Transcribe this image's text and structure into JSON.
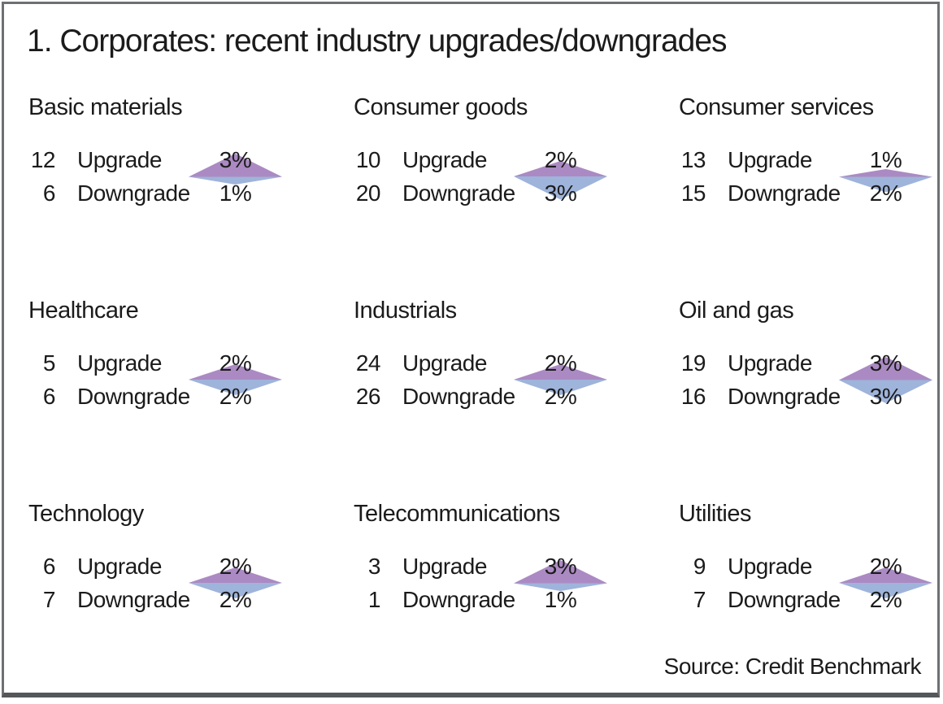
{
  "title": "1. Corporates: recent industry upgrades/downgrades",
  "source": "Source: Credit Benchmark",
  "labels": {
    "upgrade": "Upgrade",
    "downgrade": "Downgrade"
  },
  "colors": {
    "upgrade_fill": "#ab8ac3",
    "downgrade_fill": "#9fb4da",
    "frame_border": "#6d7072",
    "frame_bottom": "#54575a",
    "text": "#1b1b1b"
  },
  "chart_data": {
    "type": "table",
    "description": "Small-multiples grid of 9 industry sectors; each shows count and percentage of recent credit rating upgrades (purple upward triangle, height proportional to pct) and downgrades (blue downward triangle).",
    "legend_position": "none",
    "sectors": [
      {
        "name": "Basic materials",
        "upgrade_count": 12,
        "upgrade_pct": 3,
        "upgrade_pct_label": "3%",
        "downgrade_count": 6,
        "downgrade_pct": 1,
        "downgrade_pct_label": "1%"
      },
      {
        "name": "Consumer goods",
        "upgrade_count": 10,
        "upgrade_pct": 2,
        "upgrade_pct_label": "2%",
        "downgrade_count": 20,
        "downgrade_pct": 3,
        "downgrade_pct_label": "3%"
      },
      {
        "name": "Consumer services",
        "upgrade_count": 13,
        "upgrade_pct": 1,
        "upgrade_pct_label": "1%",
        "downgrade_count": 15,
        "downgrade_pct": 2,
        "downgrade_pct_label": "2%"
      },
      {
        "name": "Healthcare",
        "upgrade_count": 5,
        "upgrade_pct": 2,
        "upgrade_pct_label": "2%",
        "downgrade_count": 6,
        "downgrade_pct": 2,
        "downgrade_pct_label": "2%"
      },
      {
        "name": "Industrials",
        "upgrade_count": 24,
        "upgrade_pct": 2,
        "upgrade_pct_label": "2%",
        "downgrade_count": 26,
        "downgrade_pct": 2,
        "downgrade_pct_label": "2%"
      },
      {
        "name": "Oil and gas",
        "upgrade_count": 19,
        "upgrade_pct": 3,
        "upgrade_pct_label": "3%",
        "downgrade_count": 16,
        "downgrade_pct": 3,
        "downgrade_pct_label": "3%"
      },
      {
        "name": "Technology",
        "upgrade_count": 6,
        "upgrade_pct": 2,
        "upgrade_pct_label": "2%",
        "downgrade_count": 7,
        "downgrade_pct": 2,
        "downgrade_pct_label": "2%"
      },
      {
        "name": "Telecommunications",
        "upgrade_count": 3,
        "upgrade_pct": 3,
        "upgrade_pct_label": "3%",
        "downgrade_count": 1,
        "downgrade_pct": 1,
        "downgrade_pct_label": "1%"
      },
      {
        "name": "Utilities",
        "upgrade_count": 9,
        "upgrade_pct": 2,
        "upgrade_pct_label": "2%",
        "downgrade_count": 7,
        "downgrade_pct": 2,
        "downgrade_pct_label": "2%"
      }
    ]
  }
}
